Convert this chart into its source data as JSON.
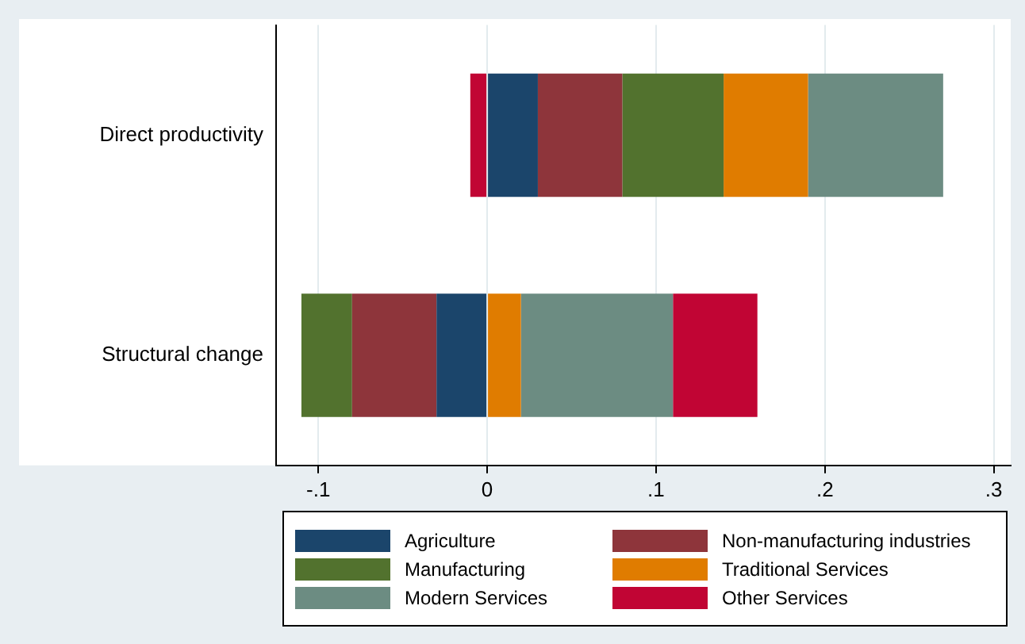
{
  "chart_data": {
    "type": "bar",
    "orientation": "horizontal",
    "stacked": true,
    "categories": [
      "Direct productivity",
      "Structural change"
    ],
    "series": [
      {
        "name": "Agriculture",
        "color": "#1b456b",
        "values": [
          0.03,
          -0.03
        ]
      },
      {
        "name": "Non-manufacturing industries",
        "color": "#8e353b",
        "values": [
          0.05,
          -0.05
        ]
      },
      {
        "name": "Manufacturing",
        "color": "#52722e",
        "values": [
          0.06,
          -0.03
        ]
      },
      {
        "name": "Traditional Services",
        "color": "#e07c00",
        "values": [
          0.05,
          0.02
        ]
      },
      {
        "name": "Modern Services",
        "color": "#6c8c82",
        "values": [
          0.08,
          0.09
        ]
      },
      {
        "name": "Other Services",
        "color": "#c10534",
        "values": [
          -0.01,
          0.05
        ]
      }
    ],
    "xlim": [
      -0.125,
      0.31
    ],
    "xticks": [
      {
        "value": -0.1,
        "label": "-.1"
      },
      0,
      {
        "value": 0.1,
        "label": ".1"
      },
      {
        "value": 0.2,
        "label": ".2"
      },
      {
        "value": 0.3,
        "label": ".3"
      }
    ],
    "grid": "x",
    "legend": "bottom"
  }
}
